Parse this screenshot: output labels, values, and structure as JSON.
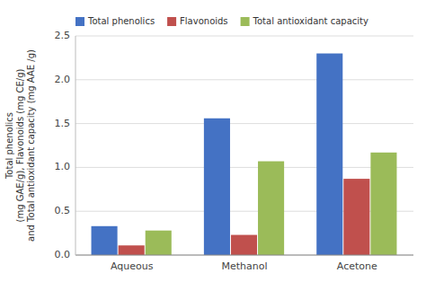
{
  "chart_data": {
    "type": "bar",
    "ylabel": "Total phenolics\n(mg GAE/g), Flavonoids (mg CE/g)\nand Total antioxidant capacity (mg AAE /g)",
    "categories": [
      "Aqueous",
      "Methanol",
      "Acetone"
    ],
    "series": [
      {
        "name": "Total phenolics",
        "color": "#4472C4",
        "values": [
          0.33,
          1.56,
          2.3
        ]
      },
      {
        "name": "Flavonoids",
        "color": "#C0504D",
        "values": [
          0.11,
          0.23,
          0.87
        ]
      },
      {
        "name": "Total antioxidant capacity",
        "color": "#9BBB59",
        "values": [
          0.28,
          1.07,
          1.17
        ]
      }
    ],
    "ylim": [
      0,
      2.5
    ],
    "yticks": [
      {
        "value": 0,
        "label": "0.0"
      },
      0.5,
      {
        "value": 1.0,
        "label": "1.0"
      },
      1.5,
      {
        "value": 2.0,
        "label": "2.0"
      },
      2.5
    ],
    "grid": true,
    "legend": "upper left"
  }
}
